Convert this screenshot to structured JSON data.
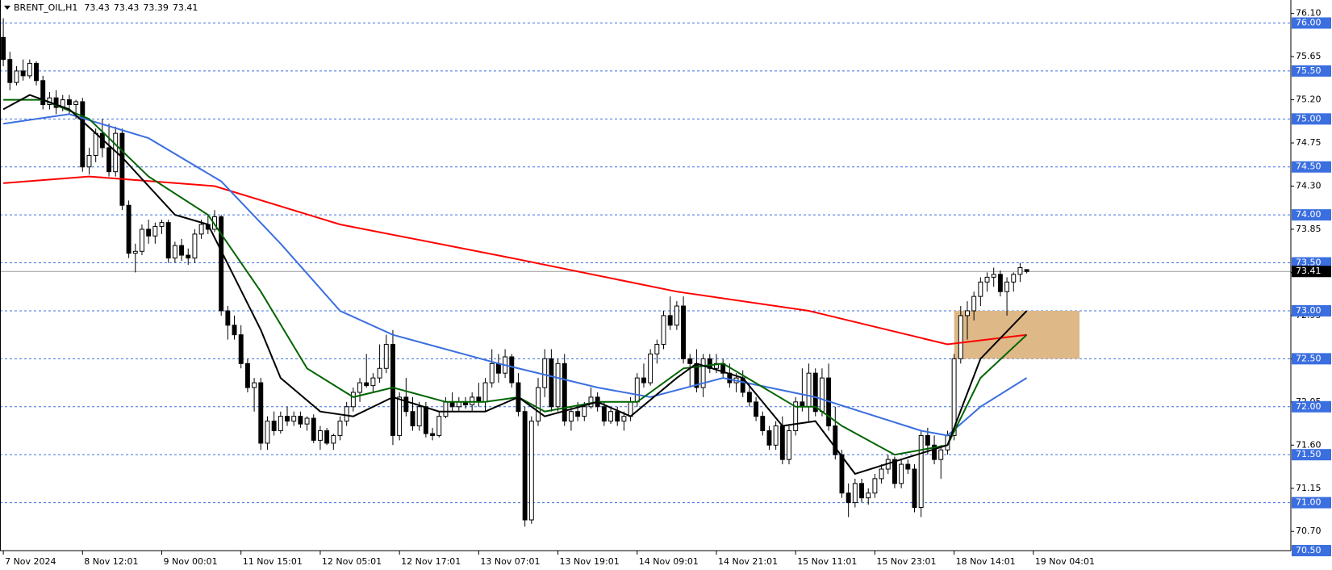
{
  "chart_data": {
    "type": "candlestick",
    "title": "BRENT_OIL,H1",
    "up_color": "#ffffff",
    "down_color": "#000000",
    "ohlc": [
      [
        75.85,
        76.05,
        75.55,
        75.62
      ],
      [
        75.62,
        75.7,
        75.3,
        75.38
      ],
      [
        75.38,
        75.55,
        75.35,
        75.5
      ],
      [
        75.5,
        75.62,
        75.4,
        75.45
      ],
      [
        75.45,
        75.62,
        75.42,
        75.58
      ],
      [
        75.58,
        75.6,
        75.35,
        75.4
      ],
      [
        75.4,
        75.45,
        75.1,
        75.15
      ],
      [
        75.15,
        75.28,
        75.1,
        75.22
      ],
      [
        75.22,
        75.3,
        75.05,
        75.12
      ],
      [
        75.12,
        75.25,
        75.08,
        75.2
      ],
      [
        75.2,
        75.25,
        75.05,
        75.15
      ],
      [
        75.15,
        75.2,
        75.0,
        75.18
      ],
      [
        75.18,
        75.22,
        74.45,
        74.5
      ],
      [
        74.5,
        74.7,
        74.42,
        74.62
      ],
      [
        74.62,
        74.9,
        74.55,
        74.85
      ],
      [
        74.85,
        75.0,
        74.6,
        74.7
      ],
      [
        74.7,
        74.95,
        74.4,
        74.45
      ],
      [
        74.45,
        74.92,
        74.4,
        74.85
      ],
      [
        74.85,
        74.9,
        74.05,
        74.1
      ],
      [
        74.1,
        74.15,
        73.55,
        73.6
      ],
      [
        73.6,
        73.7,
        73.4,
        73.62
      ],
      [
        73.62,
        73.9,
        73.58,
        73.85
      ],
      [
        73.85,
        73.95,
        73.7,
        73.78
      ],
      [
        73.78,
        73.92,
        73.7,
        73.88
      ],
      [
        73.88,
        73.95,
        73.8,
        73.92
      ],
      [
        73.92,
        73.95,
        73.5,
        73.55
      ],
      [
        73.55,
        73.72,
        73.5,
        73.68
      ],
      [
        73.68,
        73.75,
        73.52,
        73.58
      ],
      [
        73.58,
        73.65,
        73.48,
        73.55
      ],
      [
        73.55,
        73.85,
        73.5,
        73.8
      ],
      [
        73.8,
        73.95,
        73.75,
        73.9
      ],
      [
        73.9,
        74.0,
        73.8,
        73.85
      ],
      [
        73.85,
        74.05,
        73.82,
        73.98
      ],
      [
        73.98,
        74.0,
        72.95,
        73.0
      ],
      [
        73.0,
        73.05,
        72.7,
        72.85
      ],
      [
        72.85,
        72.95,
        72.7,
        72.75
      ],
      [
        72.75,
        72.85,
        72.4,
        72.45
      ],
      [
        72.45,
        72.5,
        72.15,
        72.2
      ],
      [
        72.2,
        72.3,
        71.95,
        72.25
      ],
      [
        72.25,
        72.3,
        71.55,
        71.62
      ],
      [
        71.62,
        71.9,
        71.55,
        71.85
      ],
      [
        71.85,
        71.95,
        71.7,
        71.75
      ],
      [
        71.75,
        71.95,
        71.72,
        71.9
      ],
      [
        71.9,
        72.0,
        71.8,
        71.85
      ],
      [
        71.85,
        71.95,
        71.8,
        71.9
      ],
      [
        71.9,
        71.95,
        71.78,
        71.82
      ],
      [
        71.82,
        71.9,
        71.75,
        71.88
      ],
      [
        71.88,
        71.92,
        71.62,
        71.65
      ],
      [
        71.65,
        71.8,
        71.55,
        71.75
      ],
      [
        71.75,
        71.78,
        71.6,
        71.62
      ],
      [
        71.62,
        71.72,
        71.55,
        71.7
      ],
      [
        71.7,
        71.9,
        71.65,
        71.85
      ],
      [
        71.85,
        72.05,
        71.8,
        72.0
      ],
      [
        72.0,
        72.2,
        71.95,
        72.15
      ],
      [
        72.15,
        72.3,
        72.05,
        72.25
      ],
      [
        72.25,
        72.55,
        72.2,
        72.22
      ],
      [
        72.22,
        72.35,
        72.15,
        72.3
      ],
      [
        72.3,
        72.65,
        72.25,
        72.4
      ],
      [
        72.4,
        72.75,
        72.35,
        72.65
      ],
      [
        72.65,
        72.8,
        71.6,
        71.7
      ],
      [
        71.7,
        72.15,
        71.65,
        72.1
      ],
      [
        72.1,
        72.3,
        71.9,
        71.95
      ],
      [
        71.95,
        72.1,
        71.75,
        71.8
      ],
      [
        71.8,
        72.05,
        71.75,
        72.0
      ],
      [
        72.0,
        72.05,
        71.68,
        71.72
      ],
      [
        71.72,
        71.78,
        71.65,
        71.7
      ],
      [
        71.7,
        71.95,
        71.68,
        71.9
      ],
      [
        71.9,
        72.1,
        71.88,
        72.05
      ],
      [
        72.05,
        72.15,
        71.95,
        72.0
      ],
      [
        72.0,
        72.1,
        71.95,
        72.05
      ],
      [
        72.05,
        72.1,
        71.98,
        72.02
      ],
      [
        72.02,
        72.15,
        71.95,
        72.1
      ],
      [
        72.1,
        72.25,
        72.0,
        72.05
      ],
      [
        72.05,
        72.3,
        71.95,
        72.25
      ],
      [
        72.25,
        72.6,
        72.2,
        72.45
      ],
      [
        72.45,
        72.55,
        72.25,
        72.35
      ],
      [
        72.35,
        72.6,
        72.3,
        72.52
      ],
      [
        72.52,
        72.55,
        72.2,
        72.25
      ],
      [
        72.25,
        72.35,
        71.9,
        71.95
      ],
      [
        71.95,
        72.0,
        70.75,
        70.82
      ],
      [
        70.82,
        71.9,
        70.78,
        71.85
      ],
      [
        71.85,
        72.3,
        71.8,
        72.2
      ],
      [
        72.2,
        72.6,
        72.1,
        72.5
      ],
      [
        72.5,
        72.6,
        71.95,
        72.0
      ],
      [
        72.0,
        72.5,
        71.95,
        72.45
      ],
      [
        72.45,
        72.55,
        71.8,
        71.85
      ],
      [
        71.85,
        72.0,
        71.75,
        71.95
      ],
      [
        71.95,
        72.05,
        71.85,
        71.9
      ],
      [
        71.9,
        72.05,
        71.85,
        72.0
      ],
      [
        72.0,
        72.2,
        71.98,
        72.1
      ],
      [
        72.1,
        72.15,
        71.95,
        72.0
      ],
      [
        72.0,
        72.05,
        71.8,
        71.85
      ],
      [
        71.85,
        72.0,
        71.82,
        71.95
      ],
      [
        71.95,
        72.0,
        71.8,
        71.85
      ],
      [
        71.85,
        71.95,
        71.75,
        71.9
      ],
      [
        71.9,
        72.1,
        71.85,
        72.05
      ],
      [
        72.05,
        72.35,
        72.0,
        72.3
      ],
      [
        72.3,
        72.45,
        72.2,
        72.25
      ],
      [
        72.25,
        72.6,
        72.22,
        72.55
      ],
      [
        72.55,
        72.7,
        72.45,
        72.65
      ],
      [
        72.65,
        73.0,
        72.6,
        72.95
      ],
      [
        72.95,
        73.15,
        72.8,
        72.85
      ],
      [
        72.85,
        73.1,
        72.8,
        73.05
      ],
      [
        73.05,
        73.15,
        72.45,
        72.5
      ],
      [
        72.5,
        72.55,
        72.2,
        72.45
      ],
      [
        72.45,
        72.6,
        72.15,
        72.2
      ],
      [
        72.2,
        72.55,
        72.1,
        72.5
      ],
      [
        72.5,
        72.55,
        72.35,
        72.4
      ],
      [
        72.4,
        72.55,
        72.35,
        72.45
      ],
      [
        72.45,
        72.5,
        72.3,
        72.35
      ],
      [
        72.35,
        72.45,
        72.2,
        72.25
      ],
      [
        72.25,
        72.35,
        72.15,
        72.3
      ],
      [
        72.3,
        72.38,
        72.1,
        72.15
      ],
      [
        72.15,
        72.25,
        72.0,
        72.05
      ],
      [
        72.05,
        72.1,
        71.85,
        71.9
      ],
      [
        71.9,
        71.95,
        71.7,
        71.75
      ],
      [
        71.75,
        71.8,
        71.55,
        71.6
      ],
      [
        71.6,
        71.85,
        71.55,
        71.8
      ],
      [
        71.8,
        71.9,
        71.4,
        71.45
      ],
      [
        71.45,
        71.8,
        71.4,
        71.75
      ],
      [
        71.75,
        72.1,
        71.7,
        72.05
      ],
      [
        72.05,
        72.4,
        71.95,
        72.0
      ],
      [
        72.0,
        72.45,
        71.85,
        72.35
      ],
      [
        72.35,
        72.4,
        71.9,
        71.95
      ],
      [
        71.95,
        72.4,
        71.9,
        72.3
      ],
      [
        72.3,
        72.45,
        71.75,
        71.8
      ],
      [
        71.8,
        72.0,
        71.45,
        71.5
      ],
      [
        71.5,
        71.55,
        71.05,
        71.1
      ],
      [
        71.1,
        71.2,
        70.85,
        71.0
      ],
      [
        71.0,
        71.25,
        70.95,
        71.2
      ],
      [
        71.2,
        71.25,
        71.0,
        71.05
      ],
      [
        71.05,
        71.15,
        70.98,
        71.1
      ],
      [
        71.1,
        71.3,
        71.05,
        71.25
      ],
      [
        71.25,
        71.4,
        71.2,
        71.35
      ],
      [
        71.35,
        71.5,
        71.3,
        71.45
      ],
      [
        71.45,
        71.48,
        71.15,
        71.2
      ],
      [
        71.2,
        71.45,
        71.15,
        71.4
      ],
      [
        71.4,
        71.45,
        71.3,
        71.35
      ],
      [
        71.35,
        71.4,
        70.9,
        70.95
      ],
      [
        70.95,
        71.75,
        70.85,
        71.7
      ],
      [
        71.7,
        71.78,
        71.5,
        71.6
      ],
      [
        71.6,
        71.7,
        71.4,
        71.45
      ],
      [
        71.45,
        71.6,
        71.25,
        71.55
      ],
      [
        71.55,
        71.75,
        71.5,
        71.7
      ],
      [
        71.7,
        72.55,
        71.65,
        72.5
      ],
      [
        72.5,
        73.05,
        72.45,
        72.95
      ],
      [
        72.95,
        73.1,
        72.7,
        73.0
      ],
      [
        73.0,
        73.2,
        72.9,
        73.15
      ],
      [
        73.15,
        73.35,
        73.05,
        73.3
      ],
      [
        73.3,
        73.4,
        73.2,
        73.35
      ],
      [
        73.35,
        73.45,
        73.25,
        73.38
      ],
      [
        73.38,
        73.42,
        73.15,
        73.2
      ],
      [
        73.2,
        73.35,
        72.95,
        73.3
      ],
      [
        73.3,
        73.4,
        73.2,
        73.38
      ],
      [
        73.38,
        73.5,
        73.3,
        73.45
      ],
      [
        73.43,
        73.43,
        73.39,
        73.41
      ]
    ],
    "series": [
      {
        "color": "#ff0000",
        "x": [
          0,
          13,
          32,
          51,
          77,
          102,
          122,
          143,
          155
        ],
        "values": [
          74.33,
          74.4,
          74.3,
          73.9,
          73.55,
          73.2,
          73.0,
          72.65,
          72.75
        ]
      },
      {
        "color": "#3b6fe0",
        "x": [
          0,
          10,
          22,
          33,
          42,
          51,
          59,
          75,
          90,
          98,
          109,
          116,
          123,
          139,
          143,
          148,
          155
        ],
        "values": [
          74.95,
          75.05,
          74.8,
          74.35,
          73.7,
          73.0,
          72.75,
          72.45,
          72.2,
          72.1,
          72.3,
          72.2,
          72.1,
          71.75,
          71.7,
          72.0,
          72.3
        ]
      },
      {
        "color": "#006400",
        "x": [
          0,
          6,
          13,
          22,
          31,
          39,
          46,
          53,
          59,
          67,
          73,
          78,
          82,
          90,
          96,
          103,
          109,
          120,
          123,
          127,
          135,
          143,
          148,
          155
        ],
        "values": [
          75.2,
          75.2,
          75.0,
          74.4,
          74.0,
          73.2,
          72.4,
          72.1,
          72.2,
          72.05,
          72.05,
          72.1,
          71.95,
          72.05,
          72.05,
          72.4,
          72.45,
          72.0,
          72.0,
          71.8,
          71.5,
          71.6,
          72.3,
          72.75
        ]
      },
      {
        "color": "#000000",
        "x": [
          0,
          4,
          10,
          18,
          26,
          31,
          39,
          42,
          48,
          53,
          59,
          66,
          73,
          78,
          82,
          90,
          95,
          102,
          105,
          112,
          118,
          123,
          129,
          136,
          143,
          148,
          155
        ],
        "values": [
          75.1,
          75.25,
          75.1,
          74.6,
          74.0,
          73.9,
          72.8,
          72.3,
          71.95,
          71.9,
          72.1,
          71.95,
          71.95,
          72.1,
          71.9,
          72.05,
          71.9,
          72.3,
          72.45,
          72.3,
          71.8,
          71.85,
          71.3,
          71.45,
          71.6,
          72.5,
          73.0
        ]
      }
    ],
    "zone": {
      "x": [
        144,
        163
      ],
      "y": [
        72.5,
        73.0
      ],
      "color": "#deb887"
    },
    "last_price": 73.41,
    "levels": {
      "color": "#3b6fe0",
      "values": [
        {
          "value": 76,
          "label": "76.00"
        },
        {
          "value": 75.5,
          "label": "75.50"
        },
        {
          "value": 75,
          "label": "75.00"
        },
        {
          "value": 74.5,
          "label": "74.50"
        },
        {
          "value": 74,
          "label": "74.00"
        },
        {
          "value": 73.5,
          "label": "73.50"
        },
        {
          "value": 73,
          "label": "73.00"
        },
        {
          "value": 72.5,
          "label": "72.50"
        },
        {
          "value": 72,
          "label": "72.00"
        },
        {
          "value": 71.5,
          "label": "71.50"
        },
        {
          "value": 71,
          "label": "71.00"
        },
        {
          "value": 70.5,
          "label": "70.50"
        }
      ]
    },
    "xlim": [
      -0.5,
      195
    ],
    "ylim": [
      70.5,
      76.24
    ],
    "xticks": [
      {
        "value": 0,
        "label": "7 Nov 2024"
      },
      {
        "value": 12,
        "label": "8 Nov 12:01"
      },
      {
        "value": 24,
        "label": "9 Nov 00:01"
      },
      {
        "value": 36,
        "label": "11 Nov 15:01"
      },
      {
        "value": 48,
        "label": "12 Nov 05:01"
      },
      {
        "value": 60,
        "label": "12 Nov 17:01"
      },
      {
        "value": 72,
        "label": "13 Nov 07:01"
      },
      {
        "value": 84,
        "label": "13 Nov 19:01"
      },
      {
        "value": 96,
        "label": "14 Nov 09:01"
      },
      {
        "value": 108,
        "label": "14 Nov 21:01"
      },
      {
        "value": 120,
        "label": "15 Nov 11:01"
      },
      {
        "value": 132,
        "label": "15 Nov 23:01"
      },
      {
        "value": 144,
        "label": "18 Nov 14:01"
      },
      {
        "value": 156,
        "label": "19 Nov 04:01"
      }
    ],
    "yticks": [
      {
        "value": 76.1,
        "label": "76.10"
      },
      75.65,
      {
        "value": 75.2,
        "label": "75.20"
      },
      74.75,
      {
        "value": 74.3,
        "label": "74.30"
      },
      73.85,
      {
        "value": 73.4,
        "label": "73.40"
      },
      72.95,
      {
        "value": 72.5,
        "label": "72.50"
      },
      72.05,
      {
        "value": 71.6,
        "label": "71.60"
      },
      71.15,
      {
        "value": 70.7,
        "label": "70.70"
      }
    ]
  }
}
